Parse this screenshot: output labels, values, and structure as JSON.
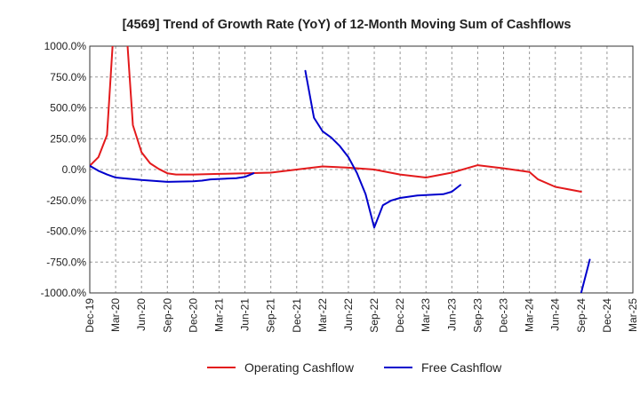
{
  "chart_data": {
    "type": "line",
    "title": "[4569]  Trend of Growth Rate (YoY) of 12-Month Moving Sum of Cashflows",
    "xlabel": "",
    "ylabel": "",
    "ylim": [
      -1000,
      1000
    ],
    "y_ticks": [
      1000,
      750,
      500,
      250,
      0,
      -250,
      -500,
      -750,
      -1000
    ],
    "y_tick_labels": [
      "1000.0%",
      "750.0%",
      "500.0%",
      "250.0%",
      "0.0%",
      "-250.0%",
      "-500.0%",
      "-750.0%",
      "-1000.0%"
    ],
    "x_range": [
      "2019-12",
      "2025-03"
    ],
    "x_ticks": [
      "2019-12",
      "2020-03",
      "2020-06",
      "2020-09",
      "2020-12",
      "2021-03",
      "2021-06",
      "2021-09",
      "2021-12",
      "2022-03",
      "2022-06",
      "2022-09",
      "2022-12",
      "2023-03",
      "2023-06",
      "2023-09",
      "2023-12",
      "2024-03",
      "2024-06",
      "2024-09",
      "2024-12",
      "2025-03"
    ],
    "x_tick_labels": [
      "Dec-19",
      "Mar-20",
      "Jun-20",
      "Sep-20",
      "Dec-20",
      "Mar-21",
      "Jun-21",
      "Sep-21",
      "Dec-21",
      "Mar-22",
      "Jun-22",
      "Sep-22",
      "Dec-22",
      "Mar-23",
      "Jun-23",
      "Sep-23",
      "Dec-23",
      "Mar-24",
      "Jun-24",
      "Sep-24",
      "Dec-24",
      "Mar-25"
    ],
    "grid": true,
    "legend_position": "bottom",
    "series": [
      {
        "name": "Operating Cashflow",
        "color": "#e31a1c",
        "points": [
          [
            "2019-12",
            30
          ],
          [
            "2020-01",
            100
          ],
          [
            "2020-02",
            280
          ],
          [
            "2020-03",
            1400
          ],
          [
            "2020-04",
            1400
          ],
          [
            "2020-05",
            360
          ],
          [
            "2020-06",
            140
          ],
          [
            "2020-07",
            50
          ],
          [
            "2020-08",
            5
          ],
          [
            "2020-09",
            -30
          ],
          [
            "2020-10",
            -40
          ],
          [
            "2020-12",
            -40
          ],
          [
            "2021-03",
            -35
          ],
          [
            "2021-06",
            -30
          ],
          [
            "2021-09",
            -25
          ],
          [
            "2021-12",
            0
          ],
          [
            "2022-03",
            25
          ],
          [
            "2022-06",
            15
          ],
          [
            "2022-09",
            0
          ],
          [
            "2022-12",
            -40
          ],
          [
            "2023-03",
            -65
          ],
          [
            "2023-06",
            -25
          ],
          [
            "2023-09",
            35
          ],
          [
            "2023-12",
            10
          ],
          [
            "2024-03",
            -20
          ],
          [
            "2024-04",
            -80
          ],
          [
            "2024-06",
            -140
          ],
          [
            "2024-09",
            -180
          ]
        ]
      },
      {
        "name": "Free Cashflow",
        "color": "#0000cc",
        "segments": [
          [
            [
              "2019-12",
              30
            ],
            [
              "2020-01",
              -10
            ],
            [
              "2020-02",
              -40
            ],
            [
              "2020-03",
              -65
            ],
            [
              "2020-06",
              -85
            ],
            [
              "2020-09",
              -100
            ],
            [
              "2020-12",
              -95
            ],
            [
              "2021-01",
              -90
            ],
            [
              "2021-02",
              -80
            ],
            [
              "2021-05",
              -70
            ],
            [
              "2021-06",
              -60
            ],
            [
              "2021-07",
              -30
            ]
          ],
          [
            [
              "2022-01",
              800
            ],
            [
              "2022-02",
              420
            ],
            [
              "2022-03",
              310
            ],
            [
              "2022-04",
              260
            ],
            [
              "2022-05",
              190
            ],
            [
              "2022-06",
              100
            ],
            [
              "2022-07",
              -30
            ],
            [
              "2022-08",
              -200
            ],
            [
              "2022-09",
              -470
            ],
            [
              "2022-10",
              -290
            ],
            [
              "2022-11",
              -250
            ],
            [
              "2022-12",
              -230
            ],
            [
              "2023-02",
              -210
            ],
            [
              "2023-05",
              -200
            ],
            [
              "2023-06",
              -180
            ],
            [
              "2023-07",
              -125
            ]
          ],
          [
            [
              "2024-09",
              -1000
            ],
            [
              "2024-10",
              -730
            ]
          ]
        ]
      }
    ]
  }
}
